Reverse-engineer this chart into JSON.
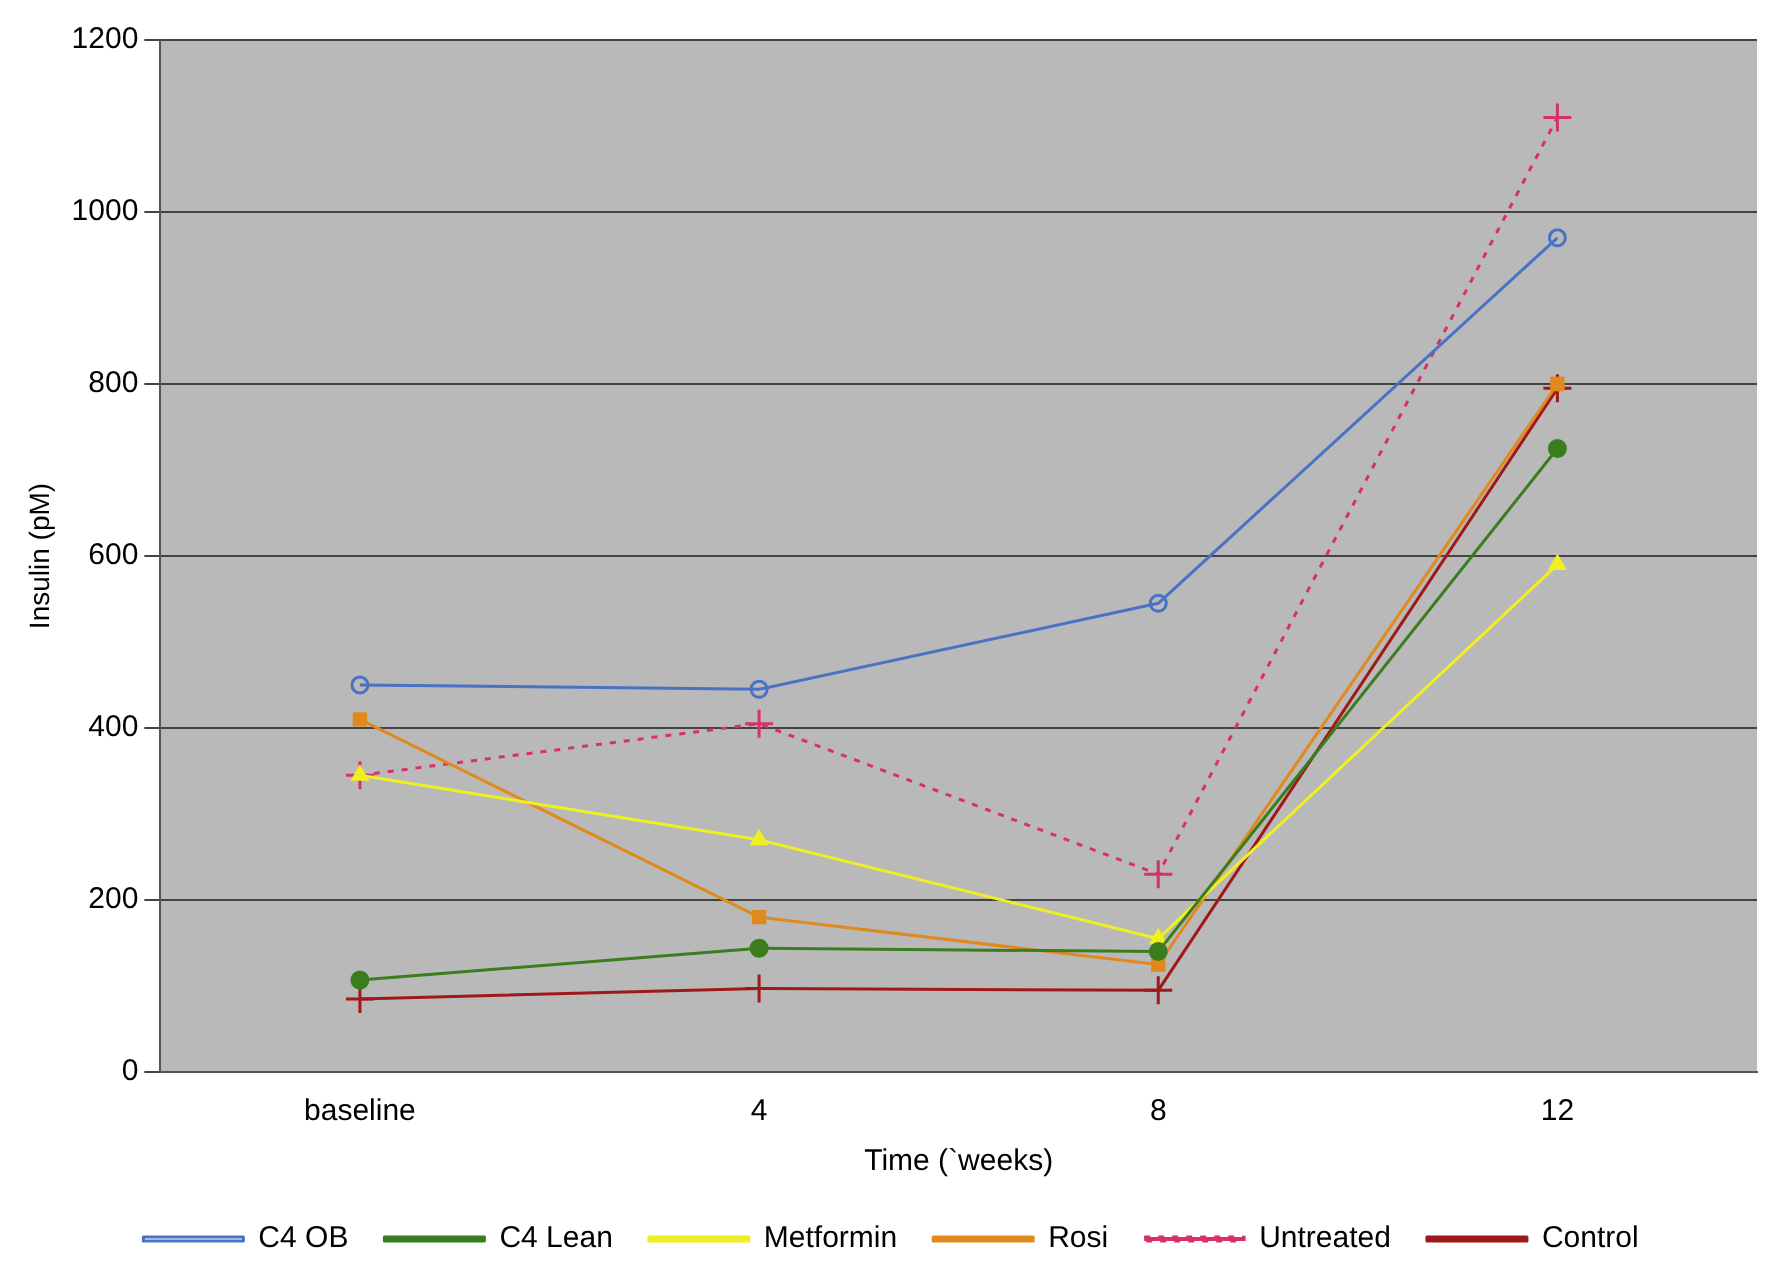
{
  "chart_data": {
    "type": "line",
    "xlabel": "Time (`weeks)",
    "ylabel": "Insulin (pM)",
    "categories": [
      "baseline",
      "4",
      "8",
      "12"
    ],
    "ylim": [
      0,
      1200
    ],
    "yticks": [
      0,
      200,
      400,
      600,
      800,
      1000,
      1200
    ],
    "grid": "y",
    "legend": "bottom",
    "series": [
      {
        "name": "C4 OB",
        "color": "#4a72c4",
        "marker": "circle",
        "values": [
          450,
          445,
          545,
          970
        ]
      },
      {
        "name": "C4 Lean",
        "color": "#3a7d1e",
        "marker": "circle",
        "values": [
          107,
          144,
          140,
          725
        ]
      },
      {
        "name": "Metformin",
        "color": "#f0f020",
        "marker": "triangle",
        "values": [
          345,
          270,
          155,
          590
        ]
      },
      {
        "name": "Rosi",
        "color": "#e08a1e",
        "marker": "square",
        "values": [
          410,
          180,
          125,
          800
        ]
      },
      {
        "name": "Untreated",
        "color": "#d8306a",
        "marker": "cross",
        "line_style": "dotted",
        "values": [
          345,
          405,
          230,
          1110
        ]
      },
      {
        "name": "Control",
        "color": "#a01818",
        "marker": "cross",
        "values": [
          85,
          97,
          95,
          795
        ]
      }
    ]
  }
}
